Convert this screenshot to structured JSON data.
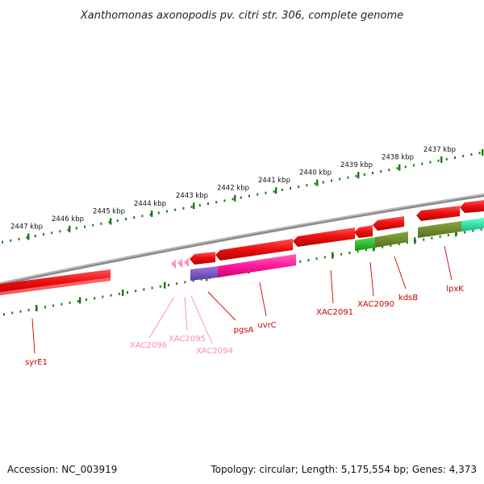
{
  "title": "Xanthomonas axonopodis pv. citri str. 306, complete genome",
  "footer": {
    "accession": "Accession: NC_003919",
    "summary": "Topology: circular; Length: 5,175,554 bp; Genes: 4,373"
  },
  "scale": {
    "unit": "kbp",
    "ticks": [
      "2447 kbp",
      "2446 kbp",
      "2445 kbp",
      "2444 kbp",
      "2443 kbp",
      "2442 kbp",
      "2441 kbp",
      "2440 kbp",
      "2439 kbp",
      "2438 kbp",
      "2437 kbp"
    ]
  },
  "colors": {
    "backbone": "#8a8a8a",
    "scale_dots": "#1a7a1a",
    "gene_red": "#ee1111",
    "gene_pink": "#ff88bb",
    "gene_magenta": "#ff1a99",
    "gene_violet": "#7a55cc",
    "gene_green": "#22bb22",
    "gene_olive": "#6b8a22",
    "gene_teal": "#22ddaa",
    "label_red": "#cc0000",
    "label_pink": "#ff88aa"
  },
  "genes": [
    {
      "name": "syrE1",
      "color_key": "label_red"
    },
    {
      "name": "XAC2096",
      "color_key": "label_pink"
    },
    {
      "name": "XAC2095",
      "color_key": "label_pink"
    },
    {
      "name": "XAC2094",
      "color_key": "label_pink"
    },
    {
      "name": "pgsA",
      "color_key": "label_red"
    },
    {
      "name": "uvrC",
      "color_key": "label_red"
    },
    {
      "name": "XAC2091",
      "color_key": "label_red"
    },
    {
      "name": "XAC2090",
      "color_key": "label_red"
    },
    {
      "name": "kdsB",
      "color_key": "label_red"
    },
    {
      "name": "lpxK",
      "color_key": "label_red"
    }
  ]
}
